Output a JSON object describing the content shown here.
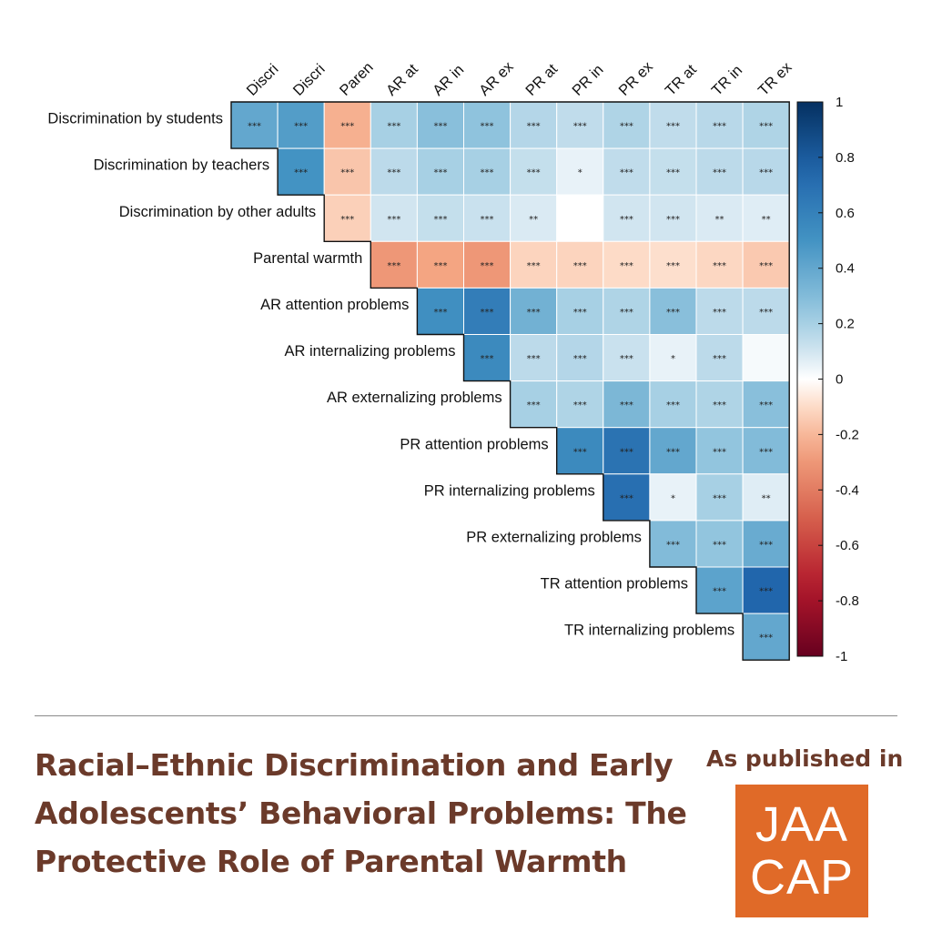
{
  "chart_data": {
    "type": "heatmap",
    "variant": "upper-triangle correlation matrix",
    "row_labels": [
      "Discrimination by students",
      "Discrimination by teachers",
      "Discrimination by other adults",
      "Parental warmth",
      "AR attention problems",
      "AR internalizing problems",
      "AR externalizing problems",
      "PR attention problems",
      "PR internalizing problems",
      "PR externalizing problems",
      "TR attention problems",
      "TR internalizing problems"
    ],
    "column_labels": [
      "Discri",
      "Discri",
      "Paren",
      "AR at",
      "AR in",
      "AR ex",
      "PR at",
      "PR in",
      "PR ex",
      "TR at",
      "TR in",
      "TR ex"
    ],
    "values": [
      [
        0.4,
        0.45,
        -0.22,
        0.2,
        0.28,
        0.26,
        0.17,
        0.14,
        0.18,
        0.14,
        0.16,
        0.18
      ],
      [
        null,
        0.5,
        -0.16,
        0.15,
        0.2,
        0.2,
        0.13,
        0.05,
        0.14,
        0.13,
        0.15,
        0.16
      ],
      [
        null,
        null,
        -0.13,
        0.1,
        0.13,
        0.12,
        0.08,
        0.0,
        0.1,
        0.1,
        0.08,
        0.07
      ],
      [
        null,
        null,
        null,
        -0.3,
        -0.25,
        -0.3,
        -0.12,
        -0.12,
        -0.1,
        -0.09,
        -0.11,
        -0.15
      ],
      [
        null,
        null,
        null,
        null,
        0.52,
        0.62,
        0.35,
        0.2,
        0.18,
        0.28,
        0.15,
        0.15
      ],
      [
        null,
        null,
        null,
        null,
        null,
        0.55,
        0.15,
        0.17,
        0.12,
        0.05,
        0.15,
        0.02
      ],
      [
        null,
        null,
        null,
        null,
        null,
        null,
        0.2,
        0.18,
        0.32,
        0.2,
        0.18,
        0.28
      ],
      [
        null,
        null,
        null,
        null,
        null,
        null,
        null,
        0.55,
        0.68,
        0.4,
        0.25,
        0.3
      ],
      [
        null,
        null,
        null,
        null,
        null,
        null,
        null,
        null,
        0.7,
        0.05,
        0.2,
        0.07
      ],
      [
        null,
        null,
        null,
        null,
        null,
        null,
        null,
        null,
        null,
        0.3,
        0.25,
        0.38
      ],
      [
        null,
        null,
        null,
        null,
        null,
        null,
        null,
        null,
        null,
        null,
        0.42,
        0.75
      ],
      [
        null,
        null,
        null,
        null,
        null,
        null,
        null,
        null,
        null,
        null,
        null,
        0.4
      ]
    ],
    "significance": [
      [
        "***",
        "***",
        "***",
        "***",
        "***",
        "***",
        "***",
        "***",
        "***",
        "***",
        "***",
        "***"
      ],
      [
        null,
        "***",
        "***",
        "***",
        "***",
        "***",
        "***",
        "*",
        "***",
        "***",
        "***",
        "***"
      ],
      [
        null,
        null,
        "***",
        "***",
        "***",
        "***",
        "**",
        "",
        "***",
        "***",
        "**",
        "**"
      ],
      [
        null,
        null,
        null,
        "***",
        "***",
        "***",
        "***",
        "***",
        "***",
        "***",
        "***",
        "***"
      ],
      [
        null,
        null,
        null,
        null,
        "***",
        "***",
        "***",
        "***",
        "***",
        "***",
        "***",
        "***"
      ],
      [
        null,
        null,
        null,
        null,
        null,
        "***",
        "***",
        "***",
        "***",
        "*",
        "***",
        ""
      ],
      [
        null,
        null,
        null,
        null,
        null,
        null,
        "***",
        "***",
        "***",
        "***",
        "***",
        "***"
      ],
      [
        null,
        null,
        null,
        null,
        null,
        null,
        null,
        "***",
        "***",
        "***",
        "***",
        "***"
      ],
      [
        null,
        null,
        null,
        null,
        null,
        null,
        null,
        null,
        "***",
        "*",
        "***",
        "**"
      ],
      [
        null,
        null,
        null,
        null,
        null,
        null,
        null,
        null,
        null,
        "***",
        "***",
        "***"
      ],
      [
        null,
        null,
        null,
        null,
        null,
        null,
        null,
        null,
        null,
        null,
        "***",
        "***"
      ],
      [
        null,
        null,
        null,
        null,
        null,
        null,
        null,
        null,
        null,
        null,
        null,
        "***"
      ]
    ],
    "colorbar": {
      "range": [
        -1,
        1
      ],
      "ticks": [
        "1",
        "0.8",
        "0.6",
        "0.4",
        "0.2",
        "0",
        "-0.2",
        "-0.4",
        "-0.6",
        "-0.8",
        "-1"
      ],
      "colors": {
        "negative_end": "#67001f",
        "mid": "#ffffff",
        "positive_end": "#053061"
      }
    }
  },
  "footer": {
    "title": "Racial–Ethnic Discrimination and Early Adolescents’ Behavioral Problems: The Protective Role of Parental Warmth",
    "published_label": "As published in",
    "logo_line1": "JAA",
    "logo_line2": "CAP",
    "accent_color": "#6b3a2a",
    "logo_color": "#e06a28"
  }
}
